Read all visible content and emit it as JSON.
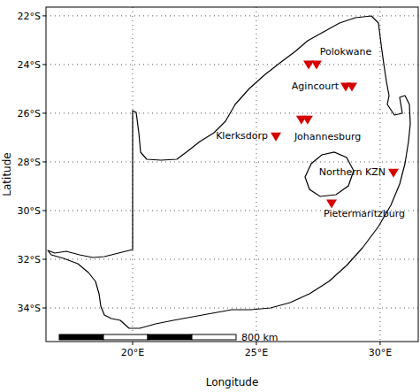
{
  "chart_data": {
    "type": "scatter",
    "x_label": "Longitude",
    "y_label": "Latitude",
    "xlim": [
      16.5,
      31.54
    ],
    "ylim": [
      -35.38,
      -21.64
    ],
    "xticks": [
      {
        "value": 20,
        "label": "20°E"
      },
      {
        "value": 25,
        "label": "25°E"
      },
      {
        "value": 30,
        "label": "30°E"
      }
    ],
    "yticks": [
      {
        "value": -22,
        "label": "22°S"
      },
      {
        "value": -24,
        "label": "24°S"
      },
      {
        "value": -26,
        "label": "26°S"
      },
      {
        "value": -28,
        "label": "28°S"
      },
      {
        "value": -30,
        "label": "30°S"
      },
      {
        "value": -32,
        "label": "32°S"
      },
      {
        "value": -34,
        "label": "34°S"
      }
    ],
    "grid": true,
    "color": "#d40000",
    "marker": "triangle-down",
    "scale_bar": "800 km",
    "series": [
      {
        "name": "Polokwane",
        "x": [
          27.11,
          27.43
        ],
        "values": [
          -23.96,
          -23.96
        ]
      },
      {
        "name": "Agincourt",
        "x": [
          28.61,
          28.86
        ],
        "values": [
          -24.87,
          -24.87
        ]
      },
      {
        "name": "Johannesburg",
        "x": [
          26.82,
          27.07
        ],
        "values": [
          -26.22,
          -26.22
        ]
      },
      {
        "name": "Klerksdorp",
        "x": [
          25.79
        ],
        "values": [
          -26.91
        ]
      },
      {
        "name": "Northern KZN",
        "x": [
          30.54
        ],
        "values": [
          -28.4
        ]
      },
      {
        "name": "Pietermaritzburg",
        "x": [
          28.04
        ],
        "values": [
          -29.67
        ]
      }
    ]
  }
}
